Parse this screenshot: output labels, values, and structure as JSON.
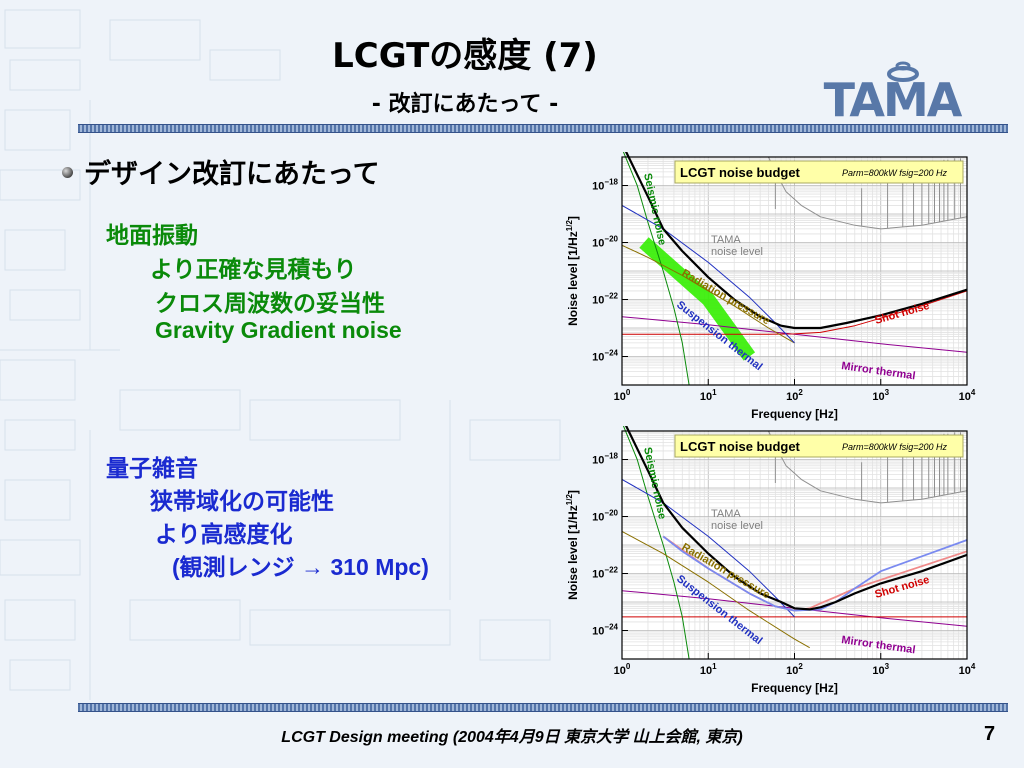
{
  "slide": {
    "title": "LCGTの感度 (7)",
    "subtitle": "- 改訂にあたって -",
    "logo_text": "TAMA",
    "bullet": "デザイン改訂にあたって",
    "section1": {
      "heading": "地面振動",
      "items": [
        "より正確な見積もり",
        "クロス周波数の妥当性",
        "Gravity Gradient noise"
      ]
    },
    "section2": {
      "heading": "量子雑音",
      "items": [
        "狭帯域化の可能性",
        "より高感度化",
        "(観測レンジ → 310 Mpc)"
      ]
    },
    "footer": "LCGT Design meeting (2004年4月9日 東京大学 山上会館, 東京)",
    "page_number": "7",
    "colors": {
      "green_text": "#0a8a0a",
      "blue_text": "#1a2ad0",
      "band": "#5474a8"
    }
  },
  "chart_data": [
    {
      "type": "line",
      "legend_box": {
        "title": "LCGT noise budget",
        "params": "Parm=800kW  fsig=200 Hz"
      },
      "xlabel": "Frequency   [Hz]",
      "ylabel": "Noise level   [1/Hz^1/2]",
      "xscale": "log",
      "yscale": "log",
      "xlim": [
        1,
        10000
      ],
      "ylim": [
        1e-25,
        1e-17
      ],
      "xticks": [
        "10^0",
        "10^1",
        "10^2",
        "10^3",
        "10^4"
      ],
      "yticks": [
        "10^-18",
        "10^-20",
        "10^-22",
        "10^-24"
      ],
      "annotations": [
        "Seismic noise",
        "TAMA",
        "noise level",
        "Radiation pressure",
        "Suspension thermal",
        "Shot noise",
        "Mirror thermal"
      ],
      "series": [
        {
          "key": "tama",
          "color": "#909090",
          "x": [
            50,
            60,
            80,
            120,
            200,
            500,
            1000,
            3000,
            10000
          ],
          "y": [
            1e-17,
            3e-18,
            6e-19,
            2e-19,
            8e-20,
            4e-20,
            3e-20,
            4e-20,
            8e-20
          ]
        },
        {
          "key": "seismic",
          "color": "#0a8a0a",
          "x": [
            1,
            1.5,
            2,
            3,
            4,
            5,
            6
          ],
          "y": [
            2e-17,
            1e-18,
            5e-20,
            1e-21,
            5e-23,
            3e-24,
            1e-25
          ]
        },
        {
          "key": "radiation_pressure",
          "color": "#8a7000",
          "x": [
            1,
            2,
            5,
            10,
            20,
            50,
            100
          ],
          "y": [
            8e-21,
            3e-21,
            7e-22,
            2e-22,
            6e-23,
            1e-23,
            3e-24
          ]
        },
        {
          "key": "suspension_thermal",
          "color": "#2030c0",
          "x": [
            1,
            3,
            10,
            30,
            60,
            100
          ],
          "y": [
            2e-19,
            3e-20,
            2e-21,
            1.2e-22,
            1.5e-23,
            3e-24
          ]
        },
        {
          "key": "shot_noise",
          "color": "#d00000",
          "x": [
            1,
            10,
            50,
            100,
            200,
            500,
            1000,
            3000,
            10000
          ],
          "y": [
            6e-24,
            6e-24,
            6e-24,
            6.2e-24,
            7e-24,
            1.2e-23,
            2.2e-23,
            6e-23,
            2e-22
          ]
        },
        {
          "key": "mirror_thermal",
          "color": "#900090",
          "x": [
            1,
            10,
            100,
            1000,
            10000
          ],
          "y": [
            2.5e-23,
            1.3e-23,
            6e-24,
            2.8e-24,
            1.4e-24
          ]
        },
        {
          "key": "total",
          "color": "#000000",
          "x": [
            1,
            2,
            3,
            5,
            10,
            20,
            40,
            70,
            100,
            200,
            400,
            1000,
            3000,
            10000
          ],
          "y": [
            3e-17,
            4e-19,
            3e-20,
            5e-21,
            6e-22,
            1e-22,
            2.5e-23,
            1.2e-23,
            1e-23,
            1e-23,
            1.5e-23,
            2.8e-23,
            7e-23,
            2.2e-22
          ]
        },
        {
          "key": "highlight",
          "color": "#33ee00",
          "x": [
            1.8,
            10,
            30
          ],
          "y": [
            1e-20,
            1e-22,
            1e-24
          ]
        }
      ]
    },
    {
      "type": "line",
      "legend_box": {
        "title": "LCGT noise budget",
        "params": "Parm=800kW  fsig=200 Hz"
      },
      "xlabel": "Frequency   [Hz]",
      "ylabel": "Noise level   [1/Hz^1/2]",
      "xscale": "log",
      "yscale": "log",
      "xlim": [
        1,
        10000
      ],
      "ylim": [
        1e-25,
        1e-17
      ],
      "xticks": [
        "10^0",
        "10^1",
        "10^2",
        "10^3",
        "10^4"
      ],
      "yticks": [
        "10^-18",
        "10^-20",
        "10^-22",
        "10^-24"
      ],
      "annotations": [
        "Seismic noise",
        "TAMA",
        "noise level",
        "Radiation pressure",
        "Suspension thermal",
        "Shot noise",
        "Mirror thermal"
      ],
      "series": [
        {
          "key": "tama",
          "color": "#909090",
          "x": [
            50,
            60,
            80,
            120,
            200,
            500,
            1000,
            3000,
            10000
          ],
          "y": [
            1e-17,
            3e-18,
            6e-19,
            2e-19,
            8e-20,
            4e-20,
            3e-20,
            4e-20,
            8e-20
          ]
        },
        {
          "key": "seismic",
          "color": "#0a8a0a",
          "x": [
            1,
            1.5,
            2,
            3,
            4,
            5,
            6
          ],
          "y": [
            2e-17,
            1e-18,
            5e-20,
            1e-21,
            5e-23,
            3e-24,
            1e-25
          ]
        },
        {
          "key": "radiation_pressure",
          "color": "#8a7000",
          "x": [
            1,
            3,
            10,
            30,
            100,
            150
          ],
          "y": [
            3e-21,
            5e-22,
            5e-23,
            5e-24,
            5e-25,
            2.5e-25
          ]
        },
        {
          "key": "suspension_thermal",
          "color": "#2030c0",
          "x": [
            1,
            3,
            10,
            30,
            60,
            100
          ],
          "y": [
            2e-19,
            3e-20,
            2e-21,
            1.2e-22,
            1.5e-23,
            3e-24
          ]
        },
        {
          "key": "shot_noise",
          "color": "#d00000",
          "x": [
            1,
            10,
            100,
            10000
          ],
          "y": [
            3e-24,
            3e-24,
            3e-24,
            3e-24
          ]
        },
        {
          "key": "mirror_thermal",
          "color": "#900090",
          "x": [
            1,
            10,
            100,
            1000,
            10000
          ],
          "y": [
            2.5e-23,
            1.3e-23,
            6e-24,
            2.8e-24,
            1.4e-24
          ]
        },
        {
          "key": "quantum_blue",
          "color": "#7a8af0",
          "x": [
            3,
            5,
            10,
            30,
            60,
            100,
            200,
            300,
            500,
            1000,
            3000,
            10000
          ],
          "y": [
            2e-21,
            6e-22,
            1.5e-22,
            2e-23,
            7e-24,
            5e-24,
            5.5e-24,
            1e-23,
            3e-23,
            1.2e-22,
            4e-22,
            1.5e-21
          ]
        },
        {
          "key": "quantum_pink",
          "color": "#f08a8a",
          "x": [
            3,
            10,
            30,
            60,
            100,
            150,
            200,
            300,
            500,
            1000,
            3000,
            10000
          ],
          "y": [
            2e-21,
            1.5e-22,
            2e-23,
            7e-24,
            5e-24,
            6e-24,
            9e-24,
            1.5e-23,
            3e-23,
            6e-23,
            1.8e-22,
            6e-22
          ]
        },
        {
          "key": "total",
          "color": "#000000",
          "x": [
            1,
            2,
            3,
            5,
            10,
            20,
            40,
            70,
            100,
            150,
            200,
            300,
            500,
            1000,
            3000,
            10000
          ],
          "y": [
            3e-17,
            4e-19,
            3e-20,
            4e-21,
            5e-22,
            8e-23,
            2e-23,
            1e-23,
            6e-24,
            5.5e-24,
            6.5e-24,
            1e-23,
            2e-23,
            4.5e-23,
            1.2e-22,
            4.5e-22
          ]
        }
      ]
    }
  ]
}
